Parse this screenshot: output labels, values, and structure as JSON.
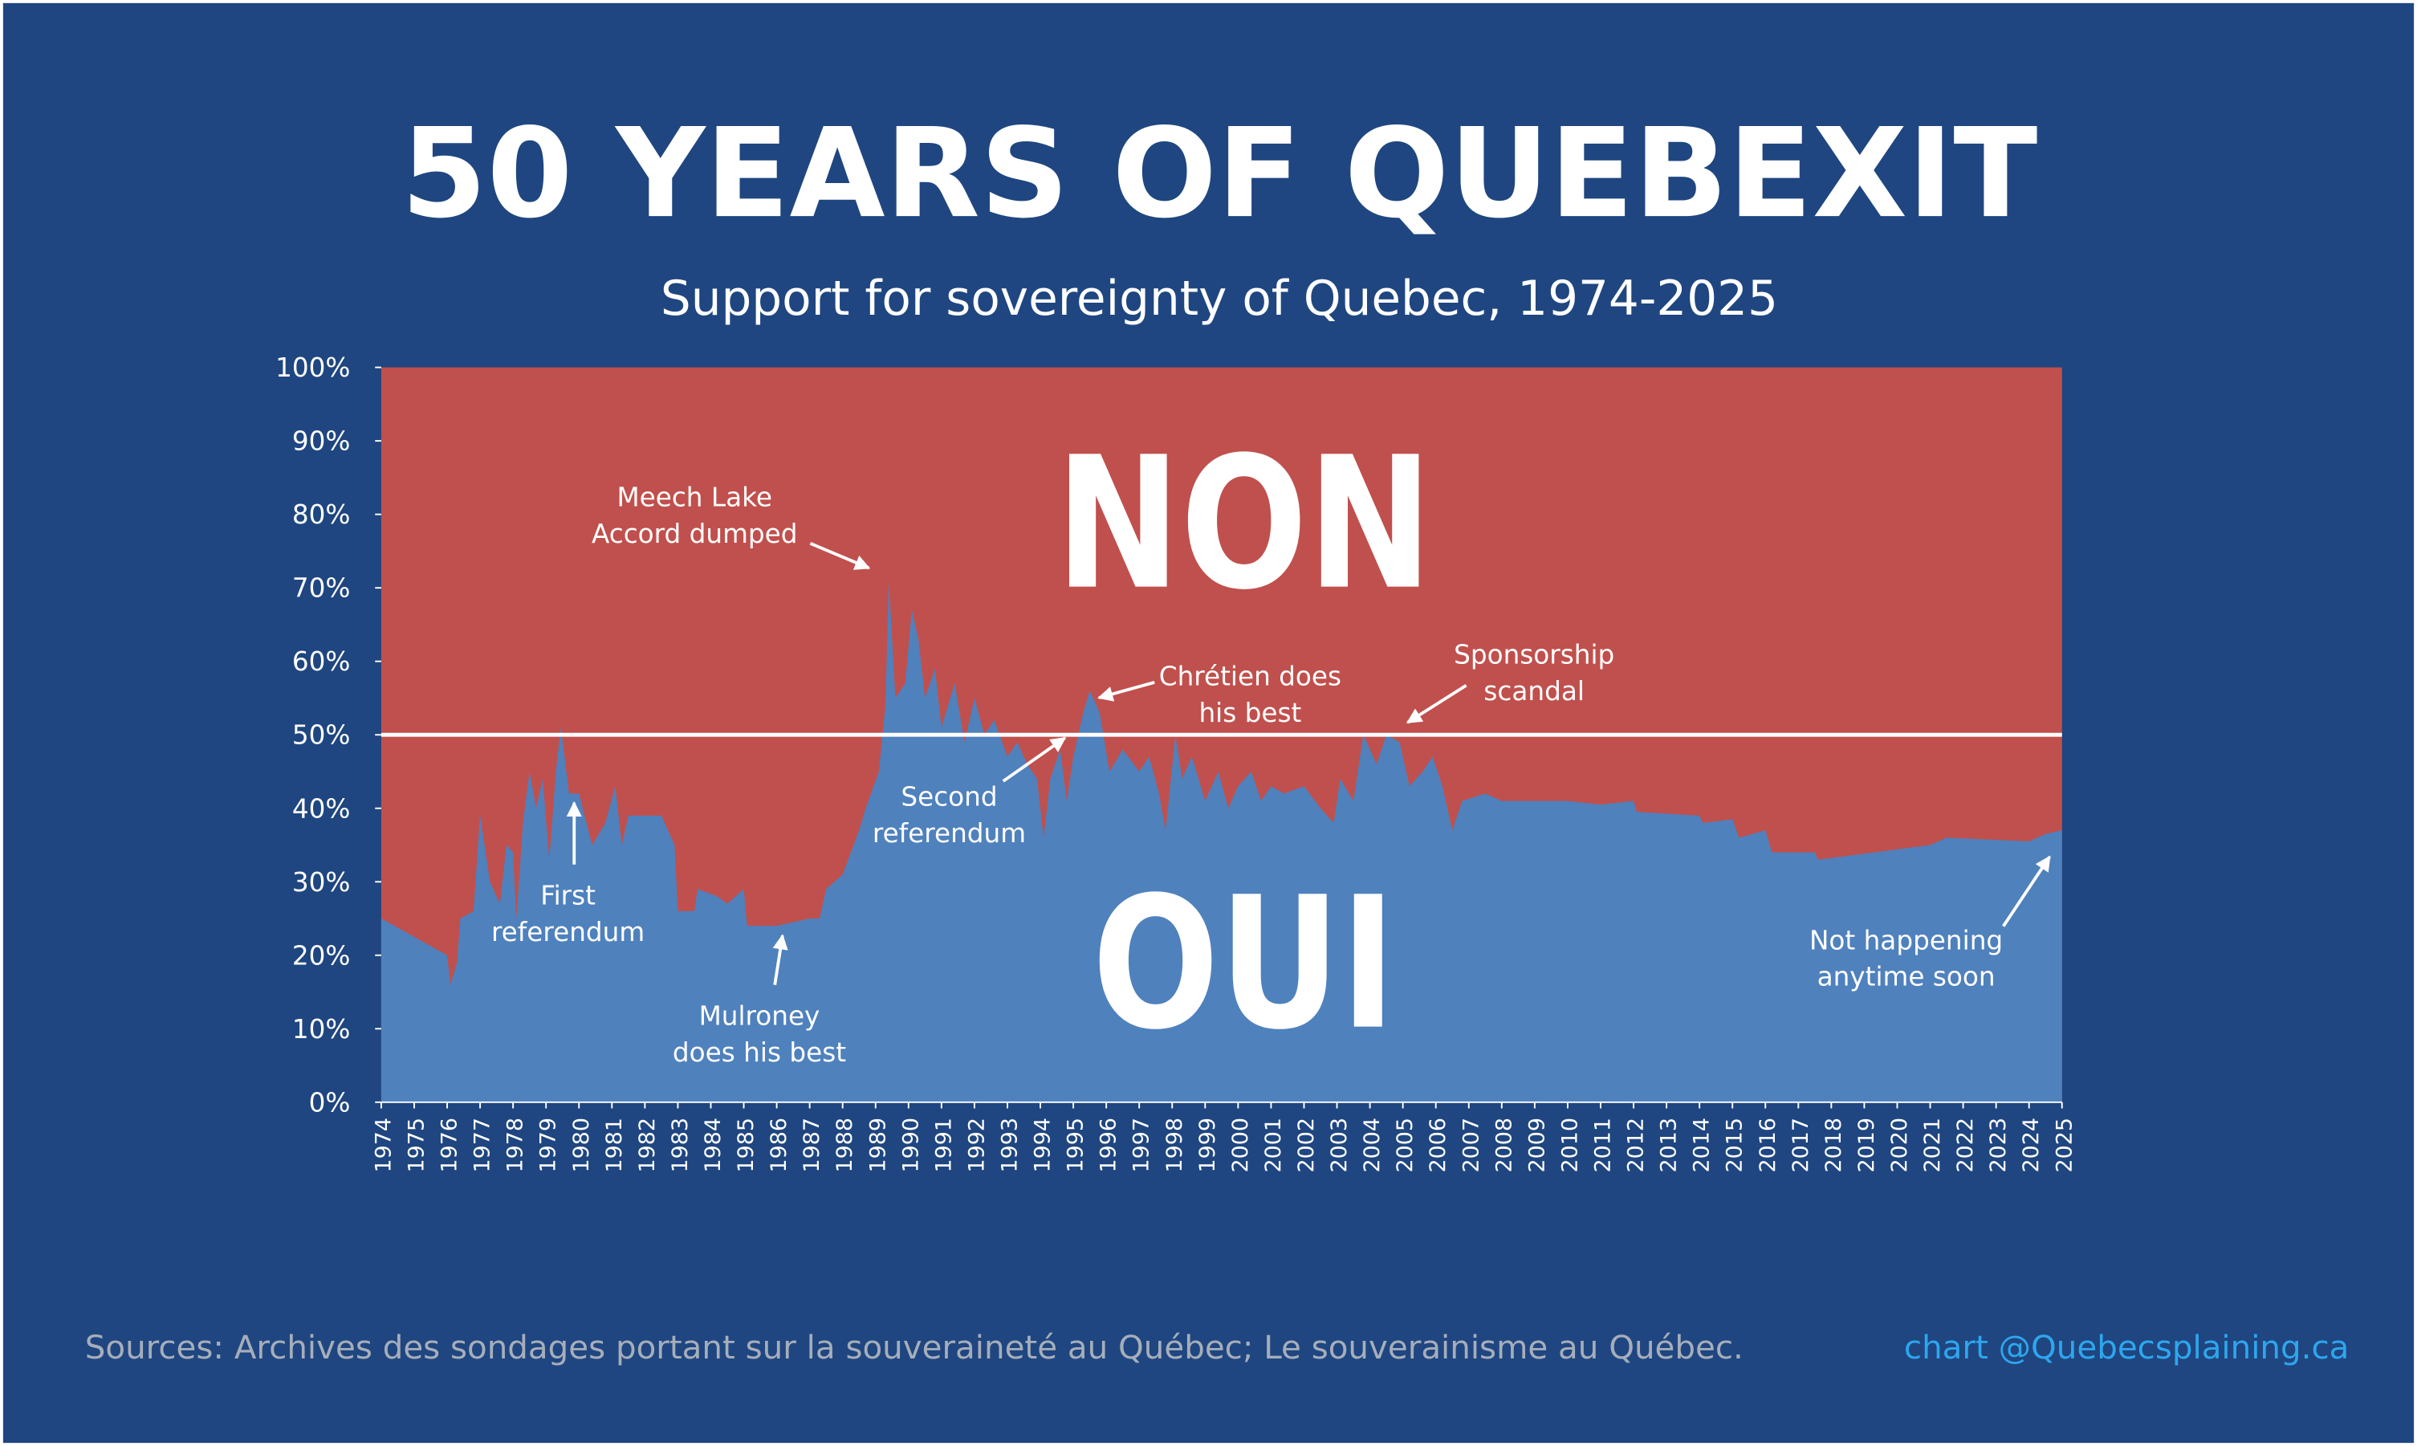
{
  "chart_data": {
    "type": "area",
    "title": "50 YEARS OF QUEBEXIT",
    "subtitle": "Support for sovereignty of Quebec, 1974-2025",
    "x": [
      1974.0,
      1976.0,
      1976.1,
      1976.3,
      1976.4,
      1976.8,
      1977.0,
      1977.3,
      1977.6,
      1977.8,
      1978.0,
      1978.1,
      1978.3,
      1978.5,
      1978.7,
      1978.9,
      1979.1,
      1979.3,
      1979.45,
      1979.7,
      1980.0,
      1980.4,
      1980.8,
      1981.1,
      1981.3,
      1981.5,
      1982.0,
      1982.5,
      1982.9,
      1983.0,
      1983.5,
      1983.6,
      1984.2,
      1984.5,
      1985.0,
      1985.1,
      1986.0,
      1987.0,
      1987.3,
      1987.5,
      1988.0,
      1988.5,
      1988.7,
      1989.1,
      1989.3,
      1989.4,
      1989.6,
      1989.9,
      1990.1,
      1990.3,
      1990.5,
      1990.8,
      1991.0,
      1991.4,
      1991.7,
      1992.0,
      1992.3,
      1992.6,
      1993.0,
      1993.3,
      1993.6,
      1993.9,
      1994.1,
      1994.3,
      1994.6,
      1994.8,
      1995.0,
      1995.3,
      1995.5,
      1995.8,
      1996.1,
      1996.5,
      1997.0,
      1997.3,
      1997.6,
      1997.8,
      1998.1,
      1998.3,
      1998.6,
      1999.0,
      1999.4,
      1999.7,
      2000.0,
      2000.4,
      2000.7,
      2001.0,
      2001.4,
      2002.0,
      2002.5,
      2002.9,
      2003.1,
      2003.5,
      2003.8,
      2004.2,
      2004.5,
      2004.9,
      2005.2,
      2005.6,
      2005.9,
      2006.2,
      2006.5,
      2006.8,
      2007.5,
      2008.0,
      2010.0,
      2011.0,
      2012.0,
      2012.1,
      2014.0,
      2014.1,
      2015.0,
      2015.2,
      2016.0,
      2016.2,
      2017.5,
      2017.6,
      2021.0,
      2021.5,
      2024.0,
      2024.5,
      2025.0
    ],
    "series": [
      {
        "name": "OUI",
        "color": "#4f81bd",
        "values": [
          25,
          20,
          16,
          19,
          25,
          26,
          39,
          30,
          27,
          35,
          34,
          25,
          38,
          45,
          40,
          44,
          33,
          45,
          51,
          42,
          42,
          35,
          38,
          43,
          35,
          39,
          39,
          39,
          35,
          26,
          26,
          29,
          28,
          27,
          29,
          24,
          24,
          25,
          25,
          29,
          31,
          37,
          40,
          45,
          54,
          71,
          55,
          57,
          67,
          63,
          55,
          59,
          51,
          57,
          49,
          55,
          50,
          52,
          47,
          49,
          46,
          44,
          36,
          44,
          48,
          41,
          47,
          53,
          56,
          53,
          45,
          48,
          45,
          47,
          42,
          37,
          50,
          44,
          47,
          41,
          45,
          40,
          43,
          45,
          41,
          43,
          42,
          43,
          40,
          38,
          44,
          41,
          50,
          46,
          50,
          49,
          43,
          45,
          47,
          43,
          37,
          41,
          42,
          41,
          41,
          40.5,
          41,
          39.5,
          39,
          38,
          38.5,
          36,
          37,
          34,
          34,
          33,
          35,
          36,
          35.5,
          36.5,
          37
        ]
      }
    ],
    "upper_region": {
      "name": "NON",
      "color": "#c0504d"
    },
    "reference_line": 50,
    "xlim": [
      1974,
      2025
    ],
    "xticks": [
      1974,
      1975,
      1976,
      1977,
      1978,
      1979,
      1980,
      1981,
      1982,
      1983,
      1984,
      1985,
      1986,
      1987,
      1988,
      1989,
      1990,
      1991,
      1992,
      1993,
      1994,
      1995,
      1996,
      1997,
      1998,
      1999,
      2000,
      2001,
      2002,
      2003,
      2004,
      2005,
      2006,
      2007,
      2008,
      2009,
      2010,
      2011,
      2012,
      2013,
      2014,
      2015,
      2016,
      2017,
      2018,
      2019,
      2020,
      2021,
      2022,
      2023,
      2024,
      2025
    ],
    "ylim": [
      0,
      100
    ],
    "yticks": [
      {
        "value": 0,
        "label": "0%"
      },
      {
        "value": 10,
        "label": "10%"
      },
      {
        "value": 20,
        "label": "20%"
      },
      {
        "value": 30,
        "label": "30%"
      },
      {
        "value": 40,
        "label": "40%"
      },
      {
        "value": 50,
        "label": "50%"
      },
      {
        "value": 60,
        "label": "60%"
      },
      {
        "value": 70,
        "label": "70%"
      },
      {
        "value": 80,
        "label": "80%"
      },
      {
        "value": 90,
        "label": "90%"
      },
      {
        "value": 100,
        "label": "100%"
      }
    ],
    "annotations": [
      {
        "text": [
          "First",
          "referendum"
        ]
      },
      {
        "text": [
          "Mulroney",
          "does his best"
        ]
      },
      {
        "text": [
          "Meech Lake",
          "Accord dumped"
        ]
      },
      {
        "text": [
          "Second",
          "referendum"
        ]
      },
      {
        "text": [
          "Chrétien does",
          "his best"
        ]
      },
      {
        "text": [
          "Sponsorship",
          "scandal"
        ]
      },
      {
        "text": [
          "Not happening",
          "anytime soon"
        ]
      }
    ],
    "source": "Sources: Archives des sondages portant sur la souveraineté au Québec; Le souverainisme au Québec.",
    "credit": "chart @Quebecsplaining.ca"
  }
}
